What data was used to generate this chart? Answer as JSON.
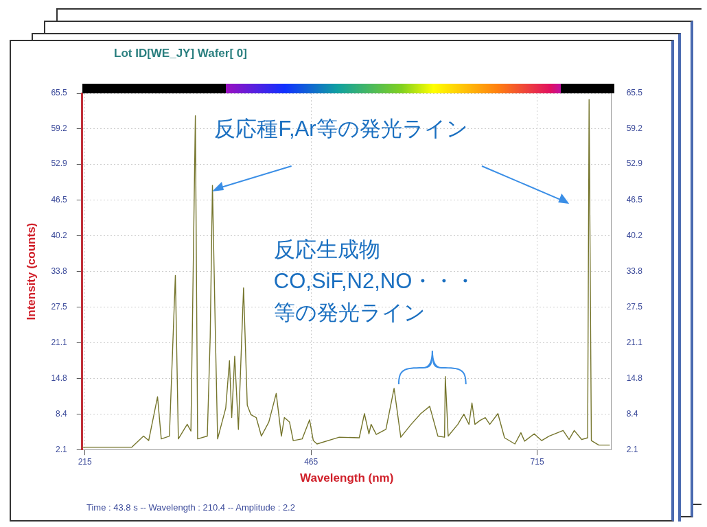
{
  "chart_data": {
    "type": "line",
    "title": "Lot ID[WE_JY]  Wafer[ 0]",
    "xlabel": "Wavelength (nm)",
    "ylabel": "Intensity (counts)",
    "x": [
      212,
      266.6,
      279.8,
      285.5,
      295.3,
      299.4,
      308.4,
      315.0,
      318.3,
      328.1,
      332.2,
      337.1,
      339.6,
      350.3,
      353.5,
      356.0,
      359.3,
      361.7,
      370.7,
      374.8,
      377.3,
      380.6,
      384.7,
      390.4,
      394.5,
      398.6,
      404.4,
      410.1,
      418.3,
      426.5,
      432.2,
      435.5,
      441.2,
      445.3,
      455.2,
      463.4,
      467.5,
      471.6,
      496.2,
      518.3,
      524.0,
      529.0,
      531.4,
      537.1,
      547.8,
      556.8,
      564.2,
      575.7,
      586.3,
      596.2,
      605.2,
      612.6,
      613.4,
      616.6,
      627.3,
      633.9,
      639.6,
      642.9,
      646.2,
      651.9,
      657.6,
      662.6,
      671.6,
      678.9,
      690.4,
      697.0,
      701.1,
      711.7,
      719.9,
      728.1,
      743.7,
      750.3,
      756.0,
      764.2,
      770.8,
      772.4,
      774.9,
      783.1,
      795.3
    ],
    "series": [
      {
        "color": "#75752c",
        "values": [
          2.5,
          2.5,
          4.5,
          3.7,
          11.5,
          4.0,
          4.5,
          33.1,
          4.0,
          6.6,
          5.4,
          61.5,
          4.0,
          4.5,
          22.1,
          49.1,
          22.1,
          4.0,
          9.5,
          17.9,
          7.8,
          18.7,
          5.7,
          30.9,
          10.0,
          8.3,
          7.8,
          4.5,
          7.0,
          12.1,
          4.5,
          7.8,
          7.0,
          3.7,
          4.0,
          7.4,
          3.7,
          3.1,
          4.3,
          4.2,
          8.5,
          4.9,
          6.6,
          4.8,
          5.7,
          13.0,
          4.3,
          6.6,
          8.5,
          9.8,
          4.5,
          4.3,
          15.1,
          4.5,
          6.6,
          8.4,
          6.6,
          10.4,
          6.6,
          7.3,
          7.8,
          6.6,
          8.5,
          4.2,
          3.1,
          5.1,
          3.6,
          4.9,
          3.7,
          4.5,
          5.5,
          3.9,
          5.5,
          3.9,
          4.2,
          64.4,
          3.7,
          2.9,
          2.9
        ]
      }
    ],
    "xlim": [
      212,
      797
    ],
    "xticks": [
      215,
      465,
      715
    ],
    "ylim": [
      2.1,
      65.5
    ],
    "yticks": [
      2.1,
      8.4,
      14.8,
      21.1,
      27.5,
      33.8,
      40.2,
      46.5,
      52.9,
      59.2,
      65.5
    ],
    "y2lim": [
      2.1,
      65.5
    ],
    "y2ticks": [
      2.1,
      8.4,
      14.8,
      21.1,
      27.5,
      33.8,
      40.2,
      46.5,
      52.9,
      59.2,
      65.5
    ],
    "grid": true,
    "annotations": [
      "反応種F,Ar等の発光ライン",
      "反応生成物",
      "CO,SiF,N2,NO・・・",
      "等の発光ライン",
      "Time : 43.8 s -- Wavelength : 210.4 -- Amplitude : 2.2"
    ]
  }
}
